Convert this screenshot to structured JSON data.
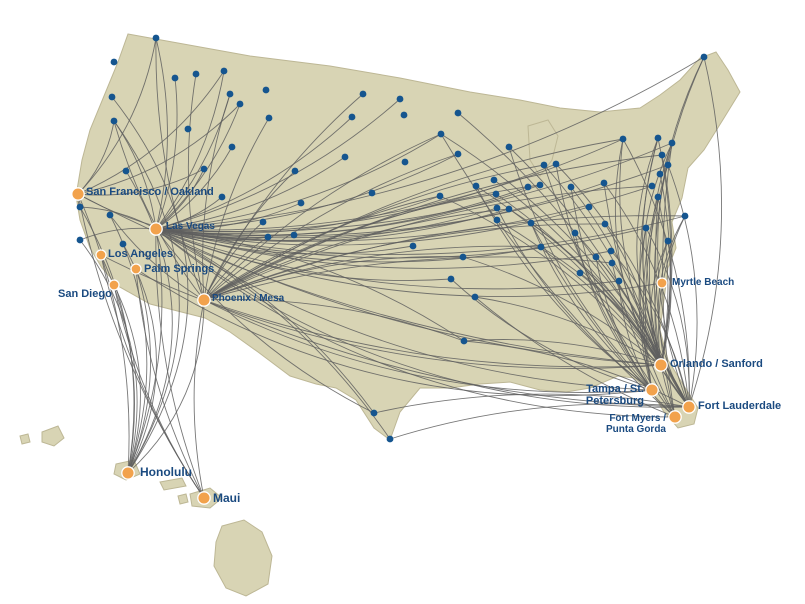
{
  "map": {
    "colors": {
      "land": "#d8d4b4",
      "land_stroke": "#bdb795",
      "route": "#5f5f5f",
      "hub": "#f2a24c",
      "hub_stroke": "#ffffff",
      "city": "#15558f",
      "label": "#1a4a80"
    },
    "hubs": [
      {
        "id": "sfo",
        "label": "San Francisco / Oakland"
      },
      {
        "id": "las",
        "label": "Las Vegas"
      },
      {
        "id": "lax",
        "label": "Los Angeles"
      },
      {
        "id": "psp",
        "label": "Palm Springs"
      },
      {
        "id": "san",
        "label": "San Diego"
      },
      {
        "id": "phx",
        "label": "Phoenix / Mesa"
      },
      {
        "id": "hnl",
        "label": "Honolulu"
      },
      {
        "id": "ogg",
        "label": "Maui"
      },
      {
        "id": "myr",
        "label": "Myrtle Beach"
      },
      {
        "id": "mco",
        "label": "Orlando / Sanford"
      },
      {
        "id": "tpa",
        "label": "Tampa / St. Petersburg"
      },
      {
        "id": "rsw",
        "label": "Fort Myers / Punta Gorda"
      },
      {
        "id": "fll",
        "label": "Fort Lauderdale"
      }
    ]
  }
}
